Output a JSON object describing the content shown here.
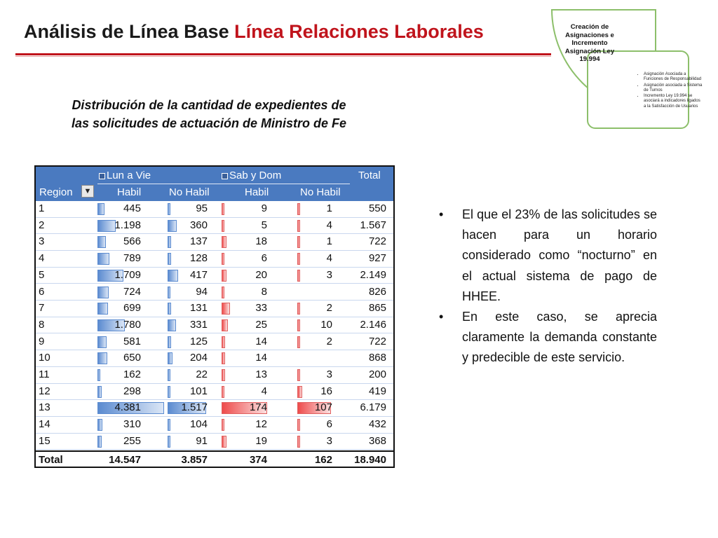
{
  "title": {
    "black": "Análisis de Línea Base",
    "red": "Línea Relaciones Laborales"
  },
  "diagram": {
    "heading": "Creación de Asignaciones e Incremento Asignación Ley 19.994",
    "items": [
      "Asignación Asociada a Funciones de Responsabilidad",
      "Asignación asociada a Sistema de Turnos",
      "Incremento Ley 19.994 se asociará a indicadores ligados a la Satisfacción de Usuarios"
    ]
  },
  "subtitle": {
    "line1": "Distribución de la cantidad de expedientes de",
    "line2": "las solicitudes de actuación de Ministro de Fe"
  },
  "pivot": {
    "group1": "Lun a Vie",
    "group2": "Sab y Dom",
    "total_header": "Total",
    "region_header": "Region",
    "columns": [
      "Habil",
      "No Habil",
      "Habil",
      "No Habil"
    ],
    "rows": [
      {
        "region": "1",
        "c1": "445",
        "c2": "95",
        "c3": "9",
        "c4": "1",
        "total": "550"
      },
      {
        "region": "2",
        "c1": "1.198",
        "c2": "360",
        "c3": "5",
        "c4": "4",
        "total": "1.567"
      },
      {
        "region": "3",
        "c1": "566",
        "c2": "137",
        "c3": "18",
        "c4": "1",
        "total": "722"
      },
      {
        "region": "4",
        "c1": "789",
        "c2": "128",
        "c3": "6",
        "c4": "4",
        "total": "927"
      },
      {
        "region": "5",
        "c1": "1.709",
        "c2": "417",
        "c3": "20",
        "c4": "3",
        "total": "2.149"
      },
      {
        "region": "6",
        "c1": "724",
        "c2": "94",
        "c3": "8",
        "c4": "",
        "total": "826"
      },
      {
        "region": "7",
        "c1": "699",
        "c2": "131",
        "c3": "33",
        "c4": "2",
        "total": "865"
      },
      {
        "region": "8",
        "c1": "1.780",
        "c2": "331",
        "c3": "25",
        "c4": "10",
        "total": "2.146"
      },
      {
        "region": "9",
        "c1": "581",
        "c2": "125",
        "c3": "14",
        "c4": "2",
        "total": "722"
      },
      {
        "region": "10",
        "c1": "650",
        "c2": "204",
        "c3": "14",
        "c4": "",
        "total": "868"
      },
      {
        "region": "11",
        "c1": "162",
        "c2": "22",
        "c3": "13",
        "c4": "3",
        "total": "200"
      },
      {
        "region": "12",
        "c1": "298",
        "c2": "101",
        "c3": "4",
        "c4": "16",
        "total": "419"
      },
      {
        "region": "13",
        "c1": "4.381",
        "c2": "1.517",
        "c3": "174",
        "c4": "107",
        "total": "6.179"
      },
      {
        "region": "14",
        "c1": "310",
        "c2": "104",
        "c3": "12",
        "c4": "6",
        "total": "432"
      },
      {
        "region": "15",
        "c1": "255",
        "c2": "91",
        "c3": "19",
        "c4": "3",
        "total": "368"
      }
    ],
    "total_row": {
      "label": "Total",
      "c1": "14.547",
      "c2": "3.857",
      "c3": "374",
      "c4": "162",
      "total": "18.940"
    }
  },
  "bullets": [
    "El que el 23% de las solicitudes se hacen para un horario considerado como “nocturno” en el actual sistema de pago de HHEE.",
    "En este caso, se aprecia claramente la demanda constante y predecible de este servicio."
  ],
  "colors": {
    "accent_red": "#c0141c",
    "header_blue": "#4a7ac0",
    "diagram_green": "#8cbf6a"
  }
}
